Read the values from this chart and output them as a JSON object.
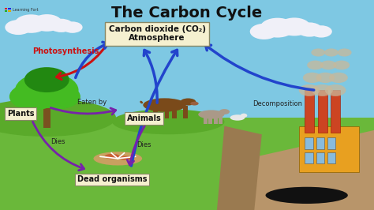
{
  "title": "The Carbon Cycle",
  "title_fontsize": 14,
  "title_fontweight": "bold",
  "bg_sky_color": "#7EC8E3",
  "bg_ground_color": "#6ab83a",
  "bg_ground_dark": "#5a9e2a",
  "bg_dirt_color": "#b8956a",
  "bg_dirt_dark": "#9a7a50",
  "box_atmosphere_text": "Carbon dioxide (CO₂)\nAtmosphere",
  "box_plants_text": "Plants",
  "box_animals_text": "Animals",
  "box_dead_text": "Dead organisms",
  "box_fill": "#f5f0d0",
  "box_edge": "#888866",
  "label_photosynthesis": "Photosynthesis",
  "label_eaten_by": "Eaten by",
  "label_dies_left": "Dies",
  "label_dies_right": "Dies",
  "label_decomposition": "Decomposition",
  "arrow_red_color": "#cc1111",
  "arrow_blue_color": "#2244cc",
  "arrow_purple_color": "#7722aa",
  "tree_green": "#44bb22",
  "tree_green_dark": "#228811",
  "trunk_color": "#7a5020",
  "cow_color": "#7a4a1a",
  "goat_color": "#aa9988",
  "factory_color": "#e8a020",
  "chimney_color": "#cc4422",
  "smoke_color": "#c8b89a",
  "cloud_color": "#f0f0f8",
  "grass_hill_color": "#5aaa2a"
}
